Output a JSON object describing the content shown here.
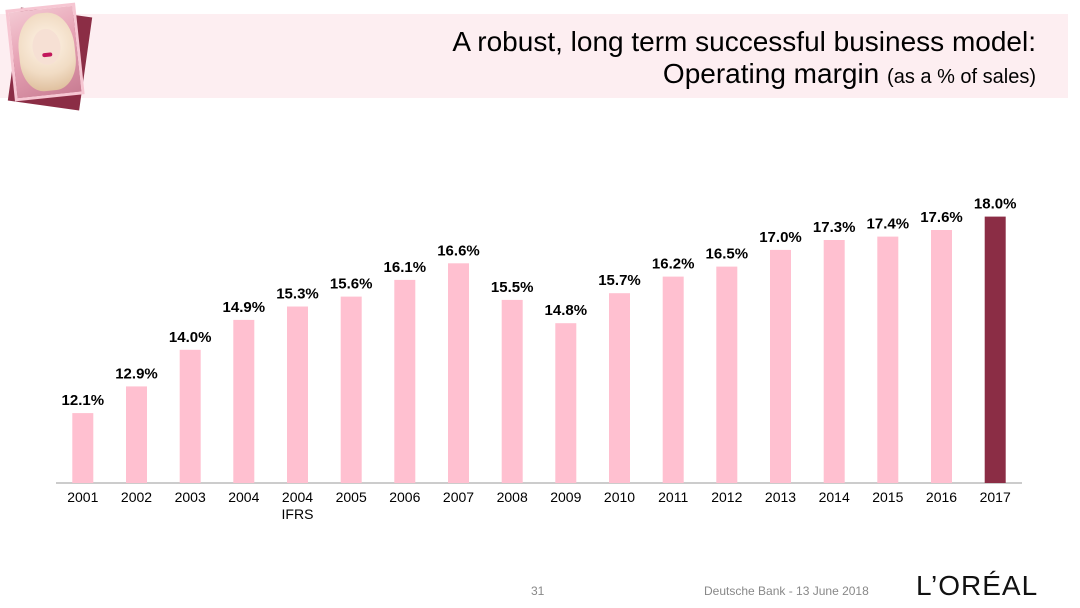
{
  "header": {
    "title_line1": "A robust, long term successful business model:",
    "title_line2_main": "Operating margin",
    "title_line2_sub": "(as a % of sales)"
  },
  "colors": {
    "header_band": "#fdeef1",
    "bar_default": "#ffc0d0",
    "bar_highlight": "#8b2d45",
    "axis": "#999999",
    "text": "#000000"
  },
  "chart_data": {
    "type": "bar",
    "title": "",
    "xlabel": "",
    "ylabel": "",
    "ylim": [
      10,
      18.5
    ],
    "categories": [
      "2001",
      "2002",
      "2003",
      "2004",
      "2004\nIFRS",
      "2005",
      "2006",
      "2007",
      "2008",
      "2009",
      "2010",
      "2011",
      "2012",
      "2013",
      "2014",
      "2015",
      "2016",
      "2017"
    ],
    "values": [
      12.1,
      12.9,
      14.0,
      14.9,
      15.3,
      15.6,
      16.1,
      16.6,
      15.5,
      14.8,
      15.7,
      16.2,
      16.5,
      17.0,
      17.3,
      17.4,
      17.6,
      18.0
    ],
    "value_labels": [
      "12.1%",
      "12.9%",
      "14.0%",
      "14.9%",
      "15.3%",
      "15.6%",
      "16.1%",
      "16.6%",
      "15.5%",
      "14.8%",
      "15.7%",
      "16.2%",
      "16.5%",
      "17.0%",
      "17.3%",
      "17.4%",
      "17.6%",
      "18.0%"
    ],
    "highlight_index": 17,
    "grid": false,
    "legend": "none"
  },
  "footer": {
    "page_number": "31",
    "note": "Deutsche Bank - 13 June 2018",
    "logo_text": "L’ORÉAL"
  }
}
